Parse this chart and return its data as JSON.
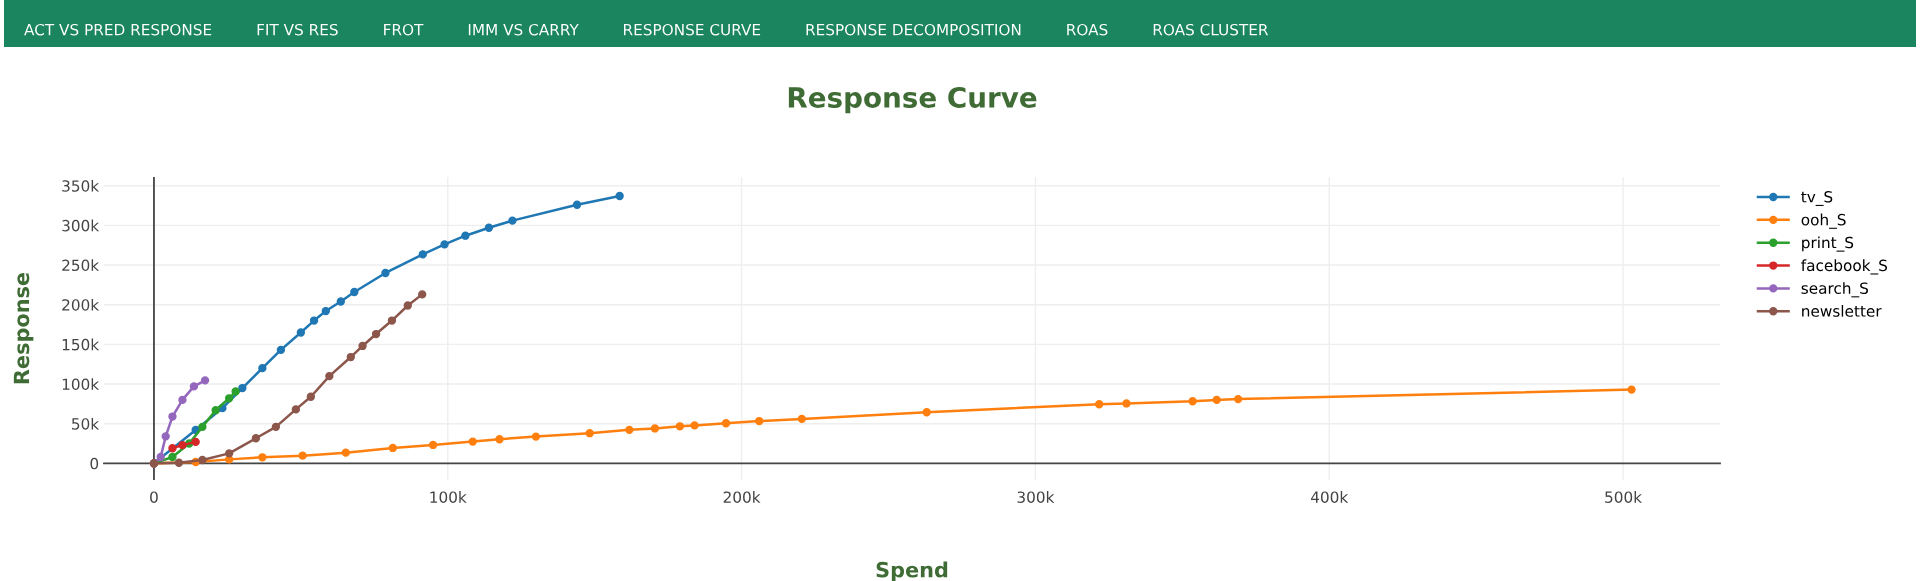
{
  "chart_data": {
    "type": "line",
    "title": "Response Curve",
    "xlabel": "Spend",
    "ylabel": "Response",
    "annotations": [
      "ACT VS PRED RESPONSE",
      "FIT VS RES",
      "FROT",
      "IMM VS CARRY",
      "RESPONSE CURVE",
      "RESPONSE DECOMPOSITION",
      "ROAS",
      "ROAS CLUSTER"
    ],
    "xlim": [
      -17000,
      533000
    ],
    "ylim": [
      -21000,
      361000
    ],
    "xticks": [
      0,
      {
        "value": 100000,
        "label": "100k"
      },
      {
        "value": 200000,
        "label": "200k"
      },
      {
        "value": 300000,
        "label": "300k"
      },
      {
        "value": 400000,
        "label": "400k"
      },
      {
        "value": 500000,
        "label": "500k"
      }
    ],
    "yticks": [
      0,
      {
        "value": 50000,
        "label": "50k"
      },
      {
        "value": 100000,
        "label": "100k"
      },
      {
        "value": 150000,
        "label": "150k"
      },
      {
        "value": 200000,
        "label": "200k"
      },
      {
        "value": 250000,
        "label": "250k"
      },
      {
        "value": 300000,
        "label": "300k"
      },
      {
        "value": 350000,
        "label": "350k"
      }
    ],
    "grid": true,
    "legend": "top right",
    "marker": "circle",
    "line_style": "solid",
    "ref_lines": [
      {
        "axis": "x",
        "value": 0,
        "color": "#444444"
      }
    ],
    "series": [
      {
        "name": "tv_S",
        "color": "#1f77b4",
        "x": [
          0,
          14200,
          23300,
          30100,
          36900,
          43200,
          50000,
          54500,
          58500,
          63600,
          68200,
          78800,
          91500,
          98900,
          106000,
          114000,
          122000,
          144000,
          158500
        ],
        "values": [
          0,
          42000,
          69600,
          94900,
          120000,
          143000,
          165000,
          180000,
          192000,
          204000,
          216000,
          240000,
          263500,
          276000,
          287000,
          297000,
          306000,
          326000,
          337000
        ]
      },
      {
        "name": "ooh_S",
        "color": "#ff7f0e",
        "x": [
          0,
          14200,
          25600,
          36900,
          50600,
          65300,
          81300,
          95000,
          108500,
          117600,
          130000,
          148300,
          161800,
          170500,
          179000,
          184000,
          194700,
          206000,
          220500,
          263000,
          321700,
          331000,
          353500,
          361700,
          369000,
          502900
        ],
        "values": [
          0,
          1700,
          5000,
          7600,
          9700,
          13500,
          19400,
          23200,
          27400,
          30400,
          33700,
          38000,
          42200,
          44000,
          46700,
          47800,
          50500,
          53300,
          56000,
          64400,
          74500,
          75500,
          78300,
          80000,
          81000,
          93000
        ]
      },
      {
        "name": "print_S",
        "color": "#2ca02c",
        "x": [
          0,
          6300,
          12000,
          16500,
          21000,
          25600,
          27800
        ],
        "values": [
          0,
          8000,
          25000,
          46000,
          67000,
          82000,
          90600
        ]
      },
      {
        "name": "facebook_S",
        "color": "#d62728",
        "x": [
          0,
          2800,
          6300,
          9700,
          14200
        ],
        "values": [
          0,
          null,
          19000,
          23000,
          27000
        ]
      },
      {
        "name": "search_S",
        "color": "#9467bd",
        "x": [
          0,
          2300,
          4000,
          6300,
          9700,
          13600,
          17400
        ],
        "values": [
          0,
          8000,
          34000,
          59000,
          80000,
          97000,
          104600
        ]
      },
      {
        "name": "newsletter",
        "color": "#8c564b",
        "x": [
          0,
          8500,
          16500,
          25600,
          34700,
          41500,
          48300,
          53400,
          59700,
          67000,
          71000,
          75600,
          81000,
          86400,
          91300
        ],
        "values": [
          0,
          800,
          4200,
          12600,
          31600,
          46000,
          68000,
          84000,
          110000,
          134000,
          148000,
          163000,
          180000,
          199000,
          213000
        ]
      }
    ]
  }
}
